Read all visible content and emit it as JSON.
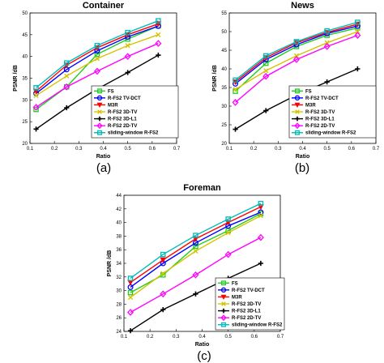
{
  "chart_data": [
    {
      "type": "line",
      "caption": "(a)",
      "title": "Container",
      "xlabel": "Ratio",
      "ylabel": "PSNR /dB",
      "xlim": [
        0.1,
        0.7
      ],
      "ylim": [
        20,
        50
      ],
      "xticks": [
        "0.1",
        "0.2",
        "0.3",
        "0.4",
        "0.5",
        "0.6",
        "0.7"
      ],
      "yticks": [
        "20",
        "25",
        "30",
        "35",
        "40",
        "45",
        "50"
      ],
      "grid": false,
      "legend": "bottom-right",
      "x": [
        0.125,
        0.25,
        0.375,
        0.5,
        0.625
      ],
      "series": [
        {
          "name": "FS",
          "color": "#22cc22",
          "marker": "square",
          "values": [
            27.8,
            33.0,
            40.5,
            44.0,
            47.0
          ]
        },
        {
          "name": "R-FS2 TV-DCT",
          "color": "#0000ff",
          "marker": "circle",
          "values": [
            31.5,
            37.0,
            41.3,
            44.5,
            47.0
          ]
        },
        {
          "name": "M3R",
          "color": "#ff0000",
          "marker": "triangle-down",
          "values": [
            32.0,
            38.0,
            42.0,
            45.0,
            47.5
          ]
        },
        {
          "name": "R-FS2 3D-TV",
          "color": "#d4c400",
          "marker": "x",
          "values": [
            31.0,
            35.5,
            39.5,
            42.5,
            45.0
          ]
        },
        {
          "name": "R-FS2 3D-L1",
          "color": "#000000",
          "marker": "plus",
          "values": [
            23.3,
            28.2,
            32.5,
            36.3,
            40.3
          ]
        },
        {
          "name": "R-FS2 2D-TV",
          "color": "#ff00ff",
          "marker": "diamond",
          "values": [
            28.3,
            33.0,
            36.6,
            40.0,
            43.0
          ]
        },
        {
          "name": "sliding-window R-FS2",
          "color": "#00bbbb",
          "marker": "square",
          "values": [
            32.8,
            38.5,
            42.5,
            45.5,
            48.2
          ]
        }
      ]
    },
    {
      "type": "line",
      "caption": "(b)",
      "title": "News",
      "xlabel": "Ratio",
      "ylabel": "PSNR /dB",
      "xlim": [
        0.1,
        0.7
      ],
      "ylim": [
        20,
        55
      ],
      "xticks": [
        "0.1",
        "0.2",
        "0.3",
        "0.4",
        "0.5",
        "0.6",
        "0.7"
      ],
      "yticks": [
        "20",
        "25",
        "30",
        "35",
        "40",
        "45",
        "50",
        "55"
      ],
      "grid": false,
      "legend": "bottom-right",
      "x": [
        0.125,
        0.25,
        0.375,
        0.5,
        0.625
      ],
      "series": [
        {
          "name": "FS",
          "color": "#22cc22",
          "marker": "square",
          "values": [
            34.0,
            41.5,
            46.0,
            49.0,
            51.0
          ]
        },
        {
          "name": "R-FS2 TV-DCT",
          "color": "#0000ff",
          "marker": "circle",
          "values": [
            36.0,
            42.5,
            46.5,
            49.5,
            51.5
          ]
        },
        {
          "name": "M3R",
          "color": "#ff0000",
          "marker": "triangle-down",
          "values": [
            36.5,
            43.0,
            47.0,
            49.8,
            52.0
          ]
        },
        {
          "name": "R-FS2 3D-TV",
          "color": "#d4c400",
          "marker": "x",
          "values": [
            34.5,
            39.5,
            43.5,
            47.0,
            50.0
          ]
        },
        {
          "name": "R-FS2 3D-L1",
          "color": "#000000",
          "marker": "plus",
          "values": [
            23.8,
            28.8,
            33.0,
            36.5,
            40.0
          ]
        },
        {
          "name": "R-FS2 2D-TV",
          "color": "#ff00ff",
          "marker": "diamond",
          "values": [
            31.0,
            38.0,
            42.5,
            46.0,
            49.0
          ]
        },
        {
          "name": "sliding-window R-FS2",
          "color": "#00bbbb",
          "marker": "square",
          "values": [
            37.0,
            43.5,
            47.3,
            50.2,
            52.5
          ]
        }
      ]
    },
    {
      "type": "line",
      "caption": "(c)",
      "title": "Foreman",
      "xlabel": "Ratio",
      "ylabel": "PSNR /dB",
      "xlim": [
        0.1,
        0.7
      ],
      "ylim": [
        24,
        44
      ],
      "xticks": [
        "0.1",
        "0.2",
        "0.3",
        "0.4",
        "0.5",
        "0.6",
        "0.7"
      ],
      "yticks": [
        "24",
        "26",
        "28",
        "30",
        "32",
        "34",
        "36",
        "38",
        "40",
        "42",
        "44"
      ],
      "grid": false,
      "legend": "bottom-right",
      "x": [
        0.125,
        0.25,
        0.375,
        0.5,
        0.625
      ],
      "series": [
        {
          "name": "FS",
          "color": "#22cc22",
          "marker": "square",
          "values": [
            29.7,
            32.3,
            36.5,
            38.8,
            41.3
          ]
        },
        {
          "name": "R-FS2 TV-DCT",
          "color": "#0000ff",
          "marker": "circle",
          "values": [
            30.5,
            34.0,
            37.0,
            39.5,
            41.5
          ]
        },
        {
          "name": "M3R",
          "color": "#ff0000",
          "marker": "triangle-down",
          "values": [
            31.2,
            34.5,
            37.6,
            40.0,
            42.3
          ]
        },
        {
          "name": "R-FS2 3D-TV",
          "color": "#d4c400",
          "marker": "x",
          "values": [
            29.0,
            32.5,
            35.8,
            38.5,
            41.0
          ]
        },
        {
          "name": "R-FS2 3D-L1",
          "color": "#000000",
          "marker": "plus",
          "values": [
            24.1,
            27.2,
            29.5,
            31.8,
            34.0
          ]
        },
        {
          "name": "R-FS2 2D-TV",
          "color": "#ff00ff",
          "marker": "diamond",
          "values": [
            26.8,
            29.5,
            32.3,
            35.3,
            37.8
          ]
        },
        {
          "name": "sliding-window R-FS2",
          "color": "#00bbbb",
          "marker": "square",
          "values": [
            31.8,
            35.3,
            38.1,
            40.5,
            42.8
          ]
        }
      ]
    }
  ]
}
